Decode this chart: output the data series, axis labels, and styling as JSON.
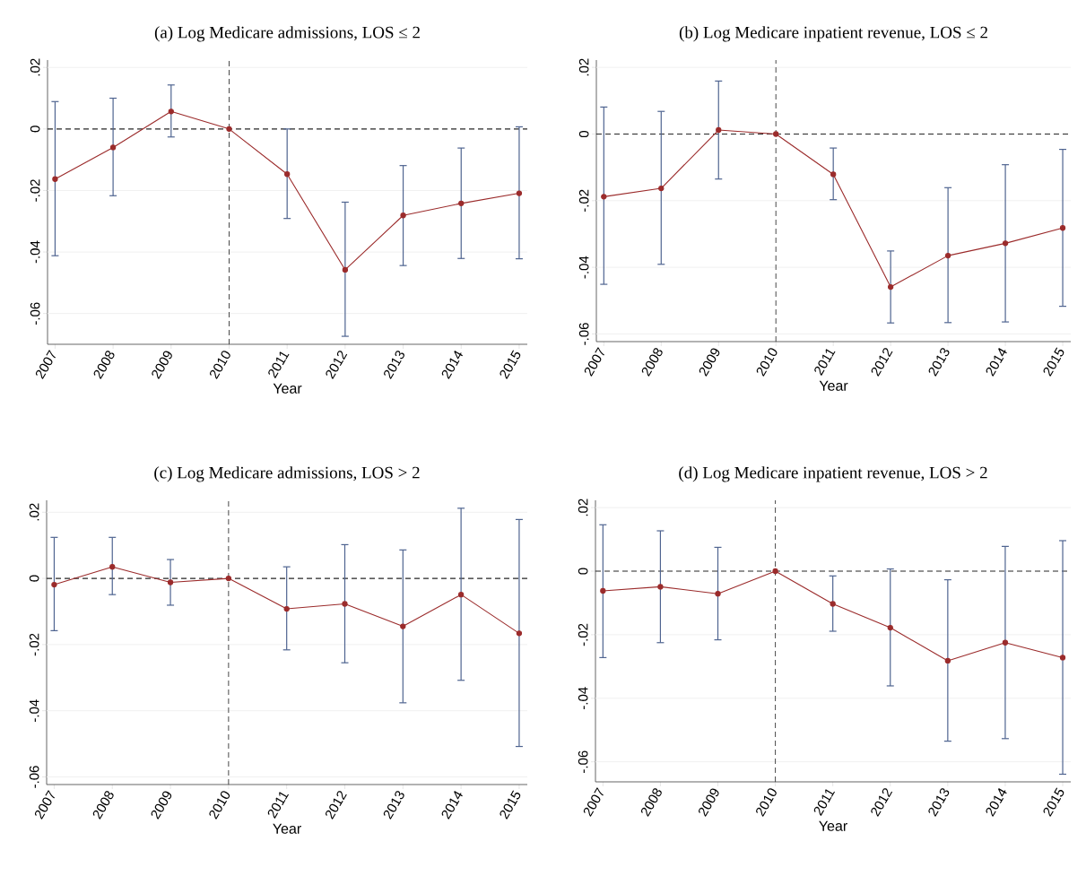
{
  "chart_data": [
    {
      "type": "line",
      "title": "(a) Log Medicare admissions, LOS ≤ 2",
      "xlabel": "Year",
      "categories": [
        "2007",
        "2008",
        "2009",
        "2010",
        "2011",
        "2012",
        "2013",
        "2014",
        "2015"
      ],
      "series": [
        {
          "color": "#9b2b2b",
          "values": [
            -0.0163,
            -0.006,
            0.0057,
            0,
            -0.0147,
            -0.0458,
            -0.0281,
            -0.0242,
            -0.0209
          ],
          "errors": [
            [
              -0.0412,
              0.0089
            ],
            [
              -0.0217,
              0.01
            ],
            [
              -0.0026,
              0.0143
            ],
            null,
            [
              -0.0291,
              0
            ],
            [
              -0.0674,
              -0.0238
            ],
            [
              -0.0444,
              -0.0119
            ],
            [
              -0.0421,
              -0.0062
            ],
            [
              -0.0422,
              0.0007
            ]
          ]
        }
      ],
      "ylim": [
        -0.07,
        0.0224
      ],
      "yticks": [
        {
          "value": -0.06,
          "label": "-.06"
        },
        {
          "value": -0.04,
          "label": "-.04"
        },
        {
          "value": -0.02,
          "label": "-.02"
        },
        0,
        {
          "value": 0.02,
          "label": ".02"
        }
      ],
      "grid": "y",
      "marker": "circle",
      "ref_lines": [
        {
          "axis": "y",
          "value": 0,
          "line_style": "dashed"
        },
        {
          "axis": "x",
          "value": "2010",
          "line_style": "dashed"
        }
      ]
    },
    {
      "type": "line",
      "title": "(b) Log Medicare inpatient revenue, LOS ≤ 2",
      "xlabel": "Year",
      "categories": [
        "2007",
        "2008",
        "2009",
        "2010",
        "2011",
        "2012",
        "2013",
        "2014",
        "2015"
      ],
      "series": [
        {
          "color": "#9b2b2b",
          "values": [
            -0.0188,
            -0.0163,
            0.0012,
            0,
            -0.0121,
            -0.0459,
            -0.0365,
            -0.0328,
            -0.0282
          ],
          "errors": [
            [
              -0.0451,
              0.0081
            ],
            [
              -0.0391,
              0.0068
            ],
            [
              -0.0135,
              0.0159
            ],
            null,
            [
              -0.0197,
              -0.0042
            ],
            [
              -0.0567,
              -0.0351
            ],
            [
              -0.0566,
              -0.0161
            ],
            [
              -0.0564,
              -0.0092
            ],
            [
              -0.0517,
              -0.0046
            ]
          ]
        }
      ],
      "ylim": [
        -0.0623,
        0.0222
      ],
      "yticks": [
        {
          "value": -0.06,
          "label": "-.06"
        },
        {
          "value": -0.04,
          "label": "-.04"
        },
        {
          "value": -0.02,
          "label": "-.02"
        },
        0,
        {
          "value": 0.02,
          "label": ".02"
        }
      ],
      "grid": "y",
      "marker": "circle",
      "ref_lines": [
        {
          "axis": "y",
          "value": 0,
          "line_style": "dashed"
        },
        {
          "axis": "x",
          "value": "2010",
          "line_style": "dashed"
        }
      ]
    },
    {
      "type": "line",
      "title": "(c) Log Medicare admissions, LOS > 2",
      "xlabel": "Year",
      "categories": [
        "2007",
        "2008",
        "2009",
        "2010",
        "2011",
        "2012",
        "2013",
        "2014",
        "2015"
      ],
      "series": [
        {
          "color": "#9b2b2b",
          "values": [
            -0.0019,
            0.0035,
            -0.0012,
            0,
            -0.0092,
            -0.0077,
            -0.0145,
            -0.0049,
            -0.0166
          ],
          "errors": [
            [
              -0.0158,
              0.0124
            ],
            [
              -0.0049,
              0.0124
            ],
            [
              -0.0081,
              0.0057
            ],
            null,
            [
              -0.0216,
              0.0035
            ],
            [
              -0.0255,
              0.0102
            ],
            [
              -0.0376,
              0.0086
            ],
            [
              -0.0308,
              0.0212
            ],
            [
              -0.0508,
              0.0178
            ]
          ]
        }
      ],
      "ylim": [
        -0.0623,
        0.0236
      ],
      "yticks": [
        {
          "value": -0.06,
          "label": "-.06"
        },
        {
          "value": -0.04,
          "label": "-.04"
        },
        {
          "value": -0.02,
          "label": "-.02"
        },
        0,
        {
          "value": 0.02,
          "label": ".02"
        }
      ],
      "grid": "y",
      "marker": "circle",
      "ref_lines": [
        {
          "axis": "y",
          "value": 0,
          "line_style": "dashed"
        },
        {
          "axis": "x",
          "value": "2010",
          "line_style": "dashed"
        }
      ]
    },
    {
      "type": "line",
      "title": "(d) Log Medicare inpatient revenue, LOS > 2",
      "xlabel": "Year",
      "categories": [
        "2007",
        "2008",
        "2009",
        "2010",
        "2011",
        "2012",
        "2013",
        "2014",
        "2015"
      ],
      "series": [
        {
          "color": "#9b2b2b",
          "values": [
            -0.0062,
            -0.0049,
            -0.0071,
            0,
            -0.0103,
            -0.0178,
            -0.0282,
            -0.0225,
            -0.0272
          ],
          "errors": [
            [
              -0.0272,
              0.0146
            ],
            [
              -0.0225,
              0.0127
            ],
            [
              -0.0216,
              0.0075
            ],
            null,
            [
              -0.0189,
              -0.0015
            ],
            [
              -0.0361,
              0.0007
            ],
            [
              -0.0535,
              -0.0027
            ],
            [
              -0.0527,
              0.0078
            ],
            [
              -0.0639,
              0.0096
            ]
          ]
        }
      ],
      "ylim": [
        -0.0663,
        0.0223
      ],
      "yticks": [
        {
          "value": -0.06,
          "label": "-.06"
        },
        {
          "value": -0.04,
          "label": "-.04"
        },
        {
          "value": -0.02,
          "label": "-.02"
        },
        0,
        {
          "value": 0.02,
          "label": ".02"
        }
      ],
      "grid": "y",
      "marker": "circle",
      "ref_lines": [
        {
          "axis": "y",
          "value": 0,
          "line_style": "dashed"
        },
        {
          "axis": "x",
          "value": "2010",
          "line_style": "dashed"
        }
      ]
    }
  ]
}
